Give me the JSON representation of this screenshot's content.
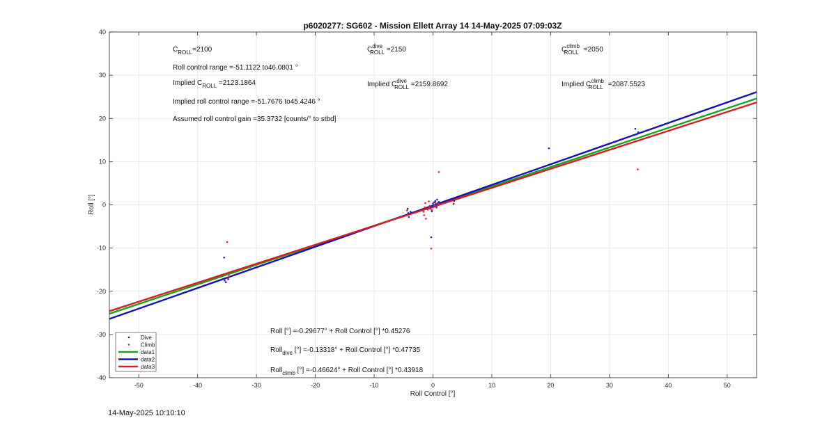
{
  "footer": {
    "timestamp": "14-May-2025 10:10:10"
  },
  "chart_data": {
    "type": "scatter",
    "title": "p6020277: SG602 - Mission Ellett Array 14 14-May-2025 07:09:03Z",
    "xlabel": "Roll Control [°]",
    "ylabel": "Roll [°]",
    "xlim": [
      -55,
      55
    ],
    "ylim": [
      -40,
      40
    ],
    "xticks": [
      -50,
      -40,
      -30,
      -20,
      -10,
      0,
      10,
      20,
      30,
      40,
      50
    ],
    "yticks": [
      -40,
      -30,
      -20,
      -10,
      0,
      10,
      20,
      30,
      40
    ],
    "grid": true,
    "legend_placement": "bottom-left",
    "colors": {
      "dive": "#1f1fbf",
      "climb": "#e0201b",
      "data1": "#1aa31a",
      "data2": "#1212b8",
      "data3": "#d42020"
    },
    "series": [
      {
        "name": "Dive",
        "kind": "points",
        "color": "#1f1fbf",
        "points": [
          [
            -35.5,
            -12.2
          ],
          [
            -35.4,
            -17.5
          ],
          [
            -35.2,
            -17.9
          ],
          [
            -34.8,
            -17.2
          ],
          [
            -4.3,
            -0.9
          ],
          [
            -4.2,
            -1.9
          ],
          [
            -4.1,
            -2.8
          ],
          [
            -3.8,
            -1.6
          ],
          [
            -0.5,
            -0.3
          ],
          [
            -0.4,
            -0.8
          ],
          [
            -0.3,
            -7.5
          ],
          [
            -0.2,
            -1.5
          ],
          [
            -0.1,
            -0.5
          ],
          [
            0.0,
            0.3
          ],
          [
            0.1,
            -0.2
          ],
          [
            0.2,
            0.6
          ],
          [
            0.3,
            -0.4
          ],
          [
            0.4,
            0.9
          ],
          [
            0.5,
            0.2
          ],
          [
            0.6,
            -0.6
          ],
          [
            0.7,
            1.2
          ],
          [
            0.8,
            0.4
          ],
          [
            1.0,
            0.7
          ],
          [
            3.5,
            0.2
          ],
          [
            3.6,
            0.9
          ],
          [
            19.7,
            13.1
          ],
          [
            34.4,
            17.6
          ],
          [
            34.6,
            16.3
          ],
          [
            34.9,
            16.8
          ]
        ]
      },
      {
        "name": "Climb",
        "kind": "points",
        "color": "#e0201b",
        "points": [
          [
            -35.0,
            -8.6
          ],
          [
            -34.9,
            -17.0
          ],
          [
            -34.7,
            -16.5
          ],
          [
            -4.4,
            -1.3
          ],
          [
            -4.2,
            -2.3
          ],
          [
            -1.6,
            -1.6
          ],
          [
            -1.5,
            -2.4
          ],
          [
            -1.4,
            -0.6
          ],
          [
            -1.3,
            0.4
          ],
          [
            -1.2,
            -3.2
          ],
          [
            -0.9,
            -1.1
          ],
          [
            -0.7,
            0.8
          ],
          [
            -0.6,
            -0.3
          ],
          [
            -0.5,
            -0.9
          ],
          [
            -0.3,
            -10.1
          ],
          [
            -0.2,
            -1.2
          ],
          [
            0.0,
            -0.6
          ],
          [
            0.2,
            -0.2
          ],
          [
            0.4,
            0.5
          ],
          [
            0.6,
            -0.4
          ],
          [
            0.9,
            0.3
          ],
          [
            1.0,
            7.6
          ],
          [
            3.5,
            0.3
          ],
          [
            34.8,
            8.2
          ]
        ]
      },
      {
        "name": "data1",
        "kind": "line",
        "color": "#1aa31a",
        "x": [
          -55,
          55
        ],
        "y": [
          -25.2,
          24.6
        ]
      },
      {
        "name": "data2",
        "kind": "line",
        "color": "#1212b8",
        "x": [
          -55,
          55
        ],
        "y": [
          -26.4,
          26.1
        ]
      },
      {
        "name": "data3",
        "kind": "line",
        "color": "#d42020",
        "x": [
          -55,
          55
        ],
        "y": [
          -24.6,
          23.7
        ]
      }
    ],
    "annotations": [
      {
        "id": "c_roll",
        "plain": "C",
        "sub": "ROLL",
        "sup": "",
        "rest": "=2100"
      },
      {
        "id": "c_roll_dive",
        "plain": "C",
        "sub": "ROLL",
        "sup": "dive",
        "rest": " =2150"
      },
      {
        "id": "c_roll_climb",
        "plain": "C",
        "sub": "ROLL",
        "sup": "climb",
        "rest": " =2050"
      },
      {
        "id": "roll_range",
        "text": "Roll control range =-51.1122 to46.0801 °"
      },
      {
        "id": "implied_c_roll",
        "pre": "Implied C",
        "sub": "ROLL",
        "sup": "",
        "rest": " =2123.1864"
      },
      {
        "id": "implied_c_dive",
        "pre": "Implied C",
        "sub": "ROLL",
        "sup": "dive",
        "rest": " =2159.8692"
      },
      {
        "id": "implied_c_climb",
        "pre": "Implied C",
        "sub": "ROLL",
        "sup": "climb",
        "rest": " =2087.5523"
      },
      {
        "id": "implied_range",
        "text": "Implied roll control range =-51.7676 to45.4246 °"
      },
      {
        "id": "gain",
        "text": "Assumed roll control gain =35.3732 [counts/° to stbd]"
      },
      {
        "id": "fit_all",
        "pre": "Roll",
        "sub": "",
        "rest": " [°] =-0.29677° + Roll Control [°] *0.45276"
      },
      {
        "id": "fit_dive",
        "pre": "Roll",
        "sub": "dive",
        "rest": " [°] =-0.13318° + Roll Control [°] *0.47735"
      },
      {
        "id": "fit_climb",
        "pre": "Roll",
        "sub": "climb",
        "rest": " [°] =-0.46624° + Roll Control [°] *0.43918"
      }
    ]
  }
}
